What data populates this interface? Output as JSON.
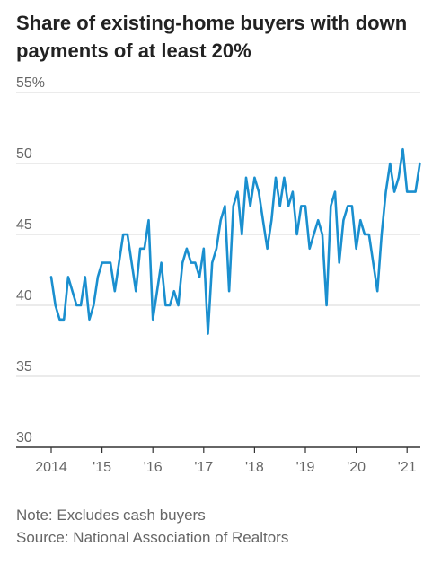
{
  "title": "Share of existing-home buyers with down payments of at least 20%",
  "note": "Note: Excludes cash buyers",
  "source": "Source: National Association of Realtors",
  "colors": {
    "line": "#1a8fcf",
    "grid": "#d7d7d7",
    "axis": "#333333"
  },
  "chart_data": {
    "type": "line",
    "title": "Share of existing-home buyers with down payments of at least 20%",
    "xlabel": "",
    "ylabel": "",
    "ylim": [
      30,
      55
    ],
    "yticks": [
      30,
      35,
      40,
      45,
      50,
      55
    ],
    "ytick_labels": [
      "30",
      "35",
      "40",
      "45",
      "50",
      "55%"
    ],
    "xticks": [
      2014,
      2015,
      2016,
      2017,
      2018,
      2019,
      2020,
      2021
    ],
    "xtick_labels": [
      "2014",
      "'15",
      "'16",
      "'17",
      "'18",
      "'19",
      "'20",
      "'21"
    ],
    "grid": true,
    "series": [
      {
        "x": [
          "2014-01",
          "2014-02",
          "2014-03",
          "2014-04",
          "2014-05",
          "2014-06",
          "2014-07",
          "2014-08",
          "2014-09",
          "2014-10",
          "2014-11",
          "2014-12",
          "2015-01",
          "2015-02",
          "2015-03",
          "2015-04",
          "2015-05",
          "2015-06",
          "2015-07",
          "2015-08",
          "2015-09",
          "2015-10",
          "2015-11",
          "2015-12",
          "2016-01",
          "2016-02",
          "2016-03",
          "2016-04",
          "2016-05",
          "2016-06",
          "2016-07",
          "2016-08",
          "2016-09",
          "2016-10",
          "2016-11",
          "2016-12",
          "2017-01",
          "2017-02",
          "2017-03",
          "2017-04",
          "2017-05",
          "2017-06",
          "2017-07",
          "2017-08",
          "2017-09",
          "2017-10",
          "2017-11",
          "2017-12",
          "2018-01",
          "2018-02",
          "2018-03",
          "2018-04",
          "2018-05",
          "2018-06",
          "2018-07",
          "2018-08",
          "2018-09",
          "2018-10",
          "2018-11",
          "2018-12",
          "2019-01",
          "2019-02",
          "2019-03",
          "2019-04",
          "2019-05",
          "2019-06",
          "2019-07",
          "2019-08",
          "2019-09",
          "2019-10",
          "2019-11",
          "2019-12",
          "2020-01",
          "2020-02",
          "2020-03",
          "2020-04",
          "2020-05",
          "2020-06",
          "2020-07",
          "2020-08",
          "2020-09",
          "2020-10",
          "2020-11",
          "2020-12",
          "2021-01",
          "2021-02",
          "2021-03",
          "2021-04"
        ],
        "values": [
          42,
          40,
          39,
          39,
          42,
          41,
          40,
          40,
          42,
          39,
          40,
          42,
          43,
          43,
          43,
          41,
          43,
          45,
          45,
          43,
          41,
          44,
          44,
          46,
          39,
          41,
          43,
          40,
          40,
          41,
          40,
          43,
          44,
          43,
          43,
          42,
          44,
          38,
          43,
          44,
          46,
          47,
          41,
          47,
          48,
          45,
          49,
          47,
          49,
          48,
          46,
          44,
          46,
          49,
          47,
          49,
          47,
          48,
          45,
          47,
          47,
          44,
          45,
          46,
          45,
          40,
          47,
          48,
          43,
          46,
          47,
          47,
          44,
          46,
          45,
          45,
          43,
          41,
          45,
          48,
          50,
          48,
          49,
          51,
          48,
          48,
          48,
          50
        ]
      }
    ]
  }
}
